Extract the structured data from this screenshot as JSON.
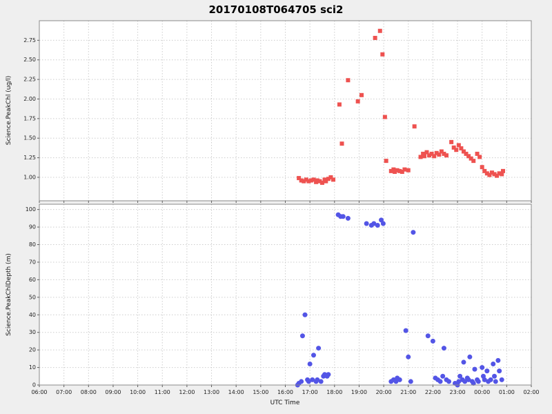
{
  "title": "20170108T064705 sci2",
  "x_axis": {
    "label": "UTC Time",
    "range_hours": [
      0,
      20
    ],
    "tick_values": [
      0,
      1,
      2,
      3,
      4,
      5,
      6,
      7,
      8,
      9,
      10,
      11,
      12,
      13,
      14,
      15,
      16,
      17,
      18,
      19,
      20
    ],
    "tick_labels": [
      "06:00",
      "07:00",
      "08:00",
      "09:00",
      "10:00",
      "11:00",
      "12:00",
      "13:00",
      "14:00",
      "15:00",
      "16:00",
      "17:00",
      "18:00",
      "19:00",
      "20:00",
      "21:00",
      "22:00",
      "23:00",
      "00:00",
      "01:00",
      "02:00"
    ]
  },
  "style": {
    "figure_bg": "#efefef",
    "plot_bg": "#ffffff",
    "grid_color": "#cccccc",
    "border_color": "#888888",
    "tick_color": "#555555"
  },
  "chart_data": [
    {
      "type": "scatter",
      "marker": "square",
      "color": "#ee5250",
      "ylabel": "Science.PeakChl (ug/l)",
      "ylim": [
        0.7,
        3.0
      ],
      "grid": true,
      "ytick_values": [
        1.0,
        1.25,
        1.5,
        1.75,
        2.0,
        2.25,
        2.5,
        2.75
      ],
      "ytick_labels": [
        "1.00",
        "1.25",
        "1.50",
        "1.75",
        "2.00",
        "2.25",
        "2.50",
        "2.75"
      ],
      "points": [
        [
          10.55,
          0.99
        ],
        [
          10.65,
          0.96
        ],
        [
          10.75,
          0.95
        ],
        [
          10.85,
          0.97
        ],
        [
          10.95,
          0.95
        ],
        [
          11.05,
          0.96
        ],
        [
          11.15,
          0.97
        ],
        [
          11.25,
          0.94
        ],
        [
          11.3,
          0.96
        ],
        [
          11.4,
          0.95
        ],
        [
          11.5,
          0.93
        ],
        [
          11.6,
          0.97
        ],
        [
          11.65,
          0.95
        ],
        [
          11.75,
          0.98
        ],
        [
          11.85,
          1.0
        ],
        [
          11.95,
          0.97
        ],
        [
          12.2,
          1.93
        ],
        [
          12.3,
          1.43
        ],
        [
          12.55,
          2.24
        ],
        [
          12.95,
          1.97
        ],
        [
          13.1,
          2.05
        ],
        [
          13.65,
          2.78
        ],
        [
          13.85,
          2.87
        ],
        [
          13.95,
          2.57
        ],
        [
          14.05,
          1.77
        ],
        [
          14.1,
          1.21
        ],
        [
          14.3,
          1.08
        ],
        [
          14.4,
          1.1
        ],
        [
          14.45,
          1.07
        ],
        [
          14.55,
          1.09
        ],
        [
          14.65,
          1.08
        ],
        [
          14.75,
          1.07
        ],
        [
          14.85,
          1.1
        ],
        [
          15.0,
          1.09
        ],
        [
          15.25,
          1.65
        ],
        [
          15.5,
          1.26
        ],
        [
          15.6,
          1.3
        ],
        [
          15.65,
          1.27
        ],
        [
          15.75,
          1.32
        ],
        [
          15.85,
          1.28
        ],
        [
          15.95,
          1.3
        ],
        [
          16.05,
          1.27
        ],
        [
          16.15,
          1.31
        ],
        [
          16.25,
          1.29
        ],
        [
          16.35,
          1.33
        ],
        [
          16.45,
          1.3
        ],
        [
          16.55,
          1.28
        ],
        [
          16.75,
          1.45
        ],
        [
          16.85,
          1.38
        ],
        [
          16.95,
          1.35
        ],
        [
          17.05,
          1.41
        ],
        [
          17.15,
          1.37
        ],
        [
          17.25,
          1.33
        ],
        [
          17.35,
          1.3
        ],
        [
          17.45,
          1.27
        ],
        [
          17.55,
          1.24
        ],
        [
          17.65,
          1.21
        ],
        [
          17.8,
          1.3
        ],
        [
          17.9,
          1.26
        ],
        [
          18.0,
          1.13
        ],
        [
          18.1,
          1.08
        ],
        [
          18.2,
          1.05
        ],
        [
          18.3,
          1.03
        ],
        [
          18.4,
          1.06
        ],
        [
          18.5,
          1.04
        ],
        [
          18.6,
          1.02
        ],
        [
          18.7,
          1.05
        ],
        [
          18.8,
          1.04
        ],
        [
          18.85,
          1.08
        ]
      ]
    },
    {
      "type": "scatter",
      "marker": "circle",
      "color": "#5355e6",
      "ylabel": "Science.PeakChlDepth (m)",
      "ylim": [
        0,
        103
      ],
      "grid": true,
      "ytick_values": [
        0,
        10,
        20,
        30,
        40,
        50,
        60,
        70,
        80,
        90,
        100
      ],
      "ytick_labels": [
        "0",
        "10",
        "20",
        "30",
        "40",
        "50",
        "60",
        "70",
        "80",
        "90",
        "100"
      ],
      "points": [
        [
          10.5,
          0
        ],
        [
          10.55,
          1
        ],
        [
          10.65,
          2
        ],
        [
          10.7,
          28
        ],
        [
          10.8,
          40
        ],
        [
          10.9,
          3
        ],
        [
          10.95,
          2
        ],
        [
          11.0,
          12
        ],
        [
          11.1,
          3
        ],
        [
          11.15,
          17
        ],
        [
          11.25,
          2
        ],
        [
          11.3,
          3
        ],
        [
          11.35,
          21
        ],
        [
          11.45,
          2
        ],
        [
          11.55,
          5
        ],
        [
          11.6,
          6
        ],
        [
          11.7,
          5
        ],
        [
          11.75,
          6
        ],
        [
          12.15,
          97
        ],
        [
          12.25,
          96
        ],
        [
          12.35,
          96
        ],
        [
          12.55,
          95
        ],
        [
          13.3,
          92
        ],
        [
          13.5,
          91
        ],
        [
          13.6,
          92
        ],
        [
          13.75,
          91
        ],
        [
          13.9,
          94
        ],
        [
          13.98,
          92
        ],
        [
          14.3,
          2
        ],
        [
          14.4,
          3
        ],
        [
          14.5,
          2
        ],
        [
          14.55,
          4
        ],
        [
          14.65,
          3
        ],
        [
          14.9,
          31
        ],
        [
          15.0,
          16
        ],
        [
          15.1,
          2
        ],
        [
          15.2,
          87
        ],
        [
          15.8,
          28
        ],
        [
          16.0,
          25
        ],
        [
          16.1,
          4
        ],
        [
          16.2,
          3
        ],
        [
          16.3,
          2
        ],
        [
          16.4,
          5
        ],
        [
          16.45,
          21
        ],
        [
          16.55,
          3
        ],
        [
          16.65,
          2
        ],
        [
          16.9,
          1
        ],
        [
          17.0,
          0
        ],
        [
          17.05,
          2
        ],
        [
          17.1,
          5
        ],
        [
          17.2,
          3
        ],
        [
          17.25,
          13
        ],
        [
          17.3,
          2
        ],
        [
          17.4,
          4
        ],
        [
          17.45,
          3
        ],
        [
          17.5,
          16
        ],
        [
          17.6,
          2
        ],
        [
          17.65,
          1
        ],
        [
          17.7,
          9
        ],
        [
          17.8,
          3
        ],
        [
          17.85,
          2
        ],
        [
          18.0,
          10
        ],
        [
          18.05,
          5
        ],
        [
          18.1,
          3
        ],
        [
          18.2,
          8
        ],
        [
          18.25,
          2
        ],
        [
          18.35,
          3
        ],
        [
          18.45,
          12
        ],
        [
          18.5,
          5
        ],
        [
          18.55,
          2
        ],
        [
          18.65,
          14
        ],
        [
          18.7,
          8
        ],
        [
          18.8,
          3
        ]
      ]
    }
  ]
}
